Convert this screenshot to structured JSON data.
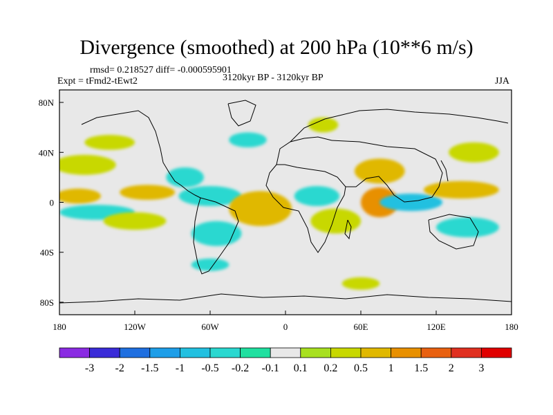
{
  "title": "Divergence (smoothed) at 200 hPa (10**6 m/s)",
  "stats": "rmsd= 0.218527 diff= -0.000595901",
  "experiment": "Expt = tFmd2-tEwt2",
  "period": "3120kyr BP - 3120kyr BP",
  "season": "JJA",
  "chart_data": {
    "type": "heatmap",
    "title": "Divergence (smoothed) at 200 hPa (10**6 m/s)",
    "lon_ticks": [
      "180",
      "120W",
      "60W",
      "0",
      "60E",
      "120E",
      "180"
    ],
    "lat_ticks": [
      "80N",
      "40N",
      "0",
      "40S",
      "80S"
    ],
    "lon_range": [
      -180,
      180
    ],
    "lat_range": [
      -90,
      90
    ],
    "colorbar": {
      "labels": [
        "-3",
        "-2",
        "-1.5",
        "-1",
        "-0.5",
        "-0.2",
        "-0.1",
        "0.1",
        "0.2",
        "0.5",
        "1",
        "1.5",
        "2",
        "3"
      ],
      "colors": [
        "#8a2be2",
        "#3a2bd8",
        "#1f6fe0",
        "#1e9ee8",
        "#22c0e0",
        "#2ad8d0",
        "#20e0a0",
        "#e8e8e8",
        "#a8e020",
        "#c8d800",
        "#e0b800",
        "#e89000",
        "#e86010",
        "#e03020",
        "#e00000"
      ]
    },
    "regions": [
      {
        "lon": -160,
        "lat": 30,
        "rx": 25,
        "ry": 8,
        "value": 0.3
      },
      {
        "lon": -165,
        "lat": 5,
        "rx": 18,
        "ry": 6,
        "value": 0.5
      },
      {
        "lon": -150,
        "lat": -8,
        "rx": 30,
        "ry": 6,
        "value": -0.5
      },
      {
        "lon": -120,
        "lat": -15,
        "rx": 25,
        "ry": 7,
        "value": 0.3
      },
      {
        "lon": -110,
        "lat": 8,
        "rx": 22,
        "ry": 6,
        "value": 0.6
      },
      {
        "lon": -80,
        "lat": 20,
        "rx": 15,
        "ry": 8,
        "value": -0.5
      },
      {
        "lon": -60,
        "lat": 5,
        "rx": 25,
        "ry": 8,
        "value": -0.5
      },
      {
        "lon": -55,
        "lat": -25,
        "rx": 20,
        "ry": 10,
        "value": -0.4
      },
      {
        "lon": -20,
        "lat": -5,
        "rx": 25,
        "ry": 14,
        "value": 0.8
      },
      {
        "lon": 25,
        "lat": 5,
        "rx": 18,
        "ry": 8,
        "value": -0.4
      },
      {
        "lon": 40,
        "lat": -15,
        "rx": 20,
        "ry": 10,
        "value": 0.4
      },
      {
        "lon": 75,
        "lat": 25,
        "rx": 20,
        "ry": 10,
        "value": 0.6
      },
      {
        "lon": 75,
        "lat": 0,
        "rx": 15,
        "ry": 12,
        "value": 1.0
      },
      {
        "lon": 100,
        "lat": 0,
        "rx": 25,
        "ry": 7,
        "value": -0.8
      },
      {
        "lon": 140,
        "lat": 10,
        "rx": 30,
        "ry": 7,
        "value": 0.8
      },
      {
        "lon": 145,
        "lat": -20,
        "rx": 25,
        "ry": 8,
        "value": -0.4
      },
      {
        "lon": 150,
        "lat": 40,
        "rx": 20,
        "ry": 8,
        "value": 0.4
      },
      {
        "lon": -140,
        "lat": 48,
        "rx": 20,
        "ry": 6,
        "value": 0.3
      },
      {
        "lon": -30,
        "lat": 50,
        "rx": 15,
        "ry": 6,
        "value": -0.3
      },
      {
        "lon": 30,
        "lat": 62,
        "rx": 12,
        "ry": 6,
        "value": 0.3
      },
      {
        "lon": 60,
        "lat": -65,
        "rx": 15,
        "ry": 5,
        "value": 0.3
      },
      {
        "lon": -60,
        "lat": -50,
        "rx": 15,
        "ry": 5,
        "value": -0.3
      }
    ]
  }
}
